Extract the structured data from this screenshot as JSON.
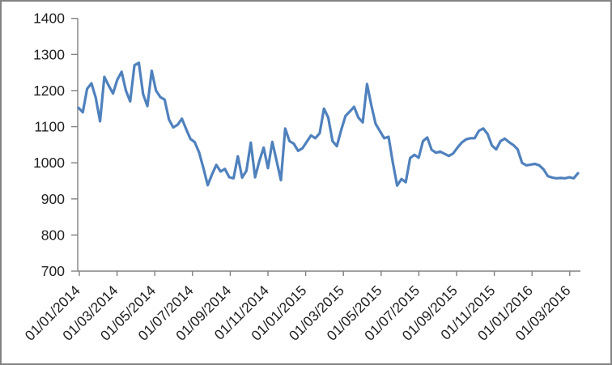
{
  "chart_data": {
    "type": "line",
    "title": "",
    "xlabel": "",
    "ylabel": "",
    "grid": false,
    "legend": false,
    "frequency": "weekly",
    "ylim": [
      700,
      1400
    ],
    "y_ticks": [
      1400,
      1300,
      1200,
      1100,
      1000,
      900,
      800,
      700
    ],
    "x_tick_labels": [
      "01/01/2014",
      "01/03/2014",
      "01/05/2014",
      "01/07/2014",
      "01/09/2014",
      "01/11/2014",
      "01/01/2015",
      "01/03/2015",
      "01/05/2015",
      "01/07/2015",
      "01/09/2015",
      "01/11/2015",
      "01/01/2016",
      "01/03/2016"
    ],
    "colors": {
      "line": "#4F81BD",
      "axis": "#808080",
      "text": "#1f1f1f",
      "background": "#ffffff",
      "border": "#838383"
    },
    "series": [
      {
        "name": "",
        "color": "#4F81BD",
        "values": [
          1152,
          1140,
          1205,
          1220,
          1180,
          1115,
          1238,
          1214,
          1192,
          1230,
          1252,
          1200,
          1170,
          1270,
          1277,
          1190,
          1157,
          1255,
          1200,
          1182,
          1175,
          1120,
          1098,
          1105,
          1122,
          1093,
          1066,
          1057,
          1029,
          985,
          938,
          968,
          994,
          976,
          983,
          960,
          957,
          1018,
          959,
          978,
          1056,
          960,
          1005,
          1042,
          985,
          1058,
          1005,
          952,
          1095,
          1060,
          1053,
          1033,
          1040,
          1058,
          1076,
          1068,
          1082,
          1150,
          1125,
          1060,
          1046,
          1091,
          1130,
          1142,
          1155,
          1125,
          1112,
          1218,
          1159,
          1108,
          1088,
          1068,
          1072,
          1000,
          937,
          955,
          946,
          1013,
          1022,
          1014,
          1060,
          1070,
          1036,
          1028,
          1031,
          1025,
          1019,
          1026,
          1042,
          1056,
          1065,
          1068,
          1068,
          1089,
          1095,
          1080,
          1048,
          1037,
          1060,
          1067,
          1057,
          1049,
          1037,
          1000,
          993,
          995,
          997,
          993,
          982,
          963,
          959,
          957,
          958,
          957,
          960,
          957,
          971
        ]
      }
    ]
  }
}
